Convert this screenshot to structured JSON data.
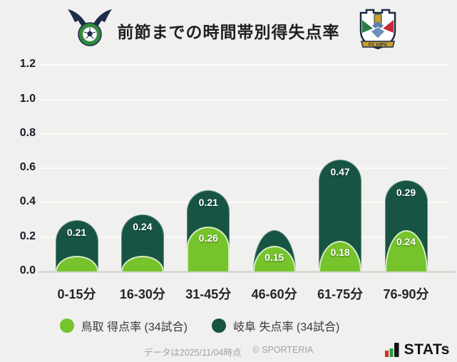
{
  "header": {
    "title": "前節までの時間帯別得失点率"
  },
  "logos": {
    "left_alt": "ガイナーレ鳥取",
    "right_alt": "FC岐阜",
    "gifu_banner_text": "FC GIFU"
  },
  "chart_data": {
    "type": "bar",
    "variant": "stacked-rounded-columns",
    "title": "前節までの時間帯別得失点率",
    "categories": [
      "0-15分",
      "16-30分",
      "31-45分",
      "46-60分",
      "61-75分",
      "76-90分"
    ],
    "series": [
      {
        "name": "鳥取 得点率 (34試合)",
        "role": "front",
        "color": "#76C32C",
        "values": [
          0.09,
          0.09,
          0.26,
          0.15,
          0.18,
          0.24
        ],
        "value_labels": [
          "",
          "",
          "0.26",
          "0.15",
          "0.18",
          "0.24"
        ]
      },
      {
        "name": "岐阜 失点率 (34試合)",
        "role": "back",
        "color": "#175443",
        "values": [
          0.21,
          0.24,
          0.21,
          0.09,
          0.47,
          0.29
        ],
        "value_labels": [
          "0.21",
          "0.24",
          "0.21",
          "",
          "0.47",
          "0.29"
        ]
      }
    ],
    "stacked": true,
    "ylim": [
      0,
      1.2
    ],
    "yticks": [
      "0.0",
      "0.2",
      "0.4",
      "0.6",
      "0.8",
      "1.0",
      "1.2"
    ],
    "grid": true,
    "legend_position": "bottom"
  },
  "legend": {
    "items": [
      {
        "label": "鳥取 得点率 (34試合)",
        "color": "#76C32C"
      },
      {
        "label": "岐阜 失点率 (34試合)",
        "color": "#175443"
      }
    ]
  },
  "footer": {
    "data_note": "データは2025/11/04時点",
    "copyright": "© SPORTERIA",
    "brand": "STATs"
  }
}
